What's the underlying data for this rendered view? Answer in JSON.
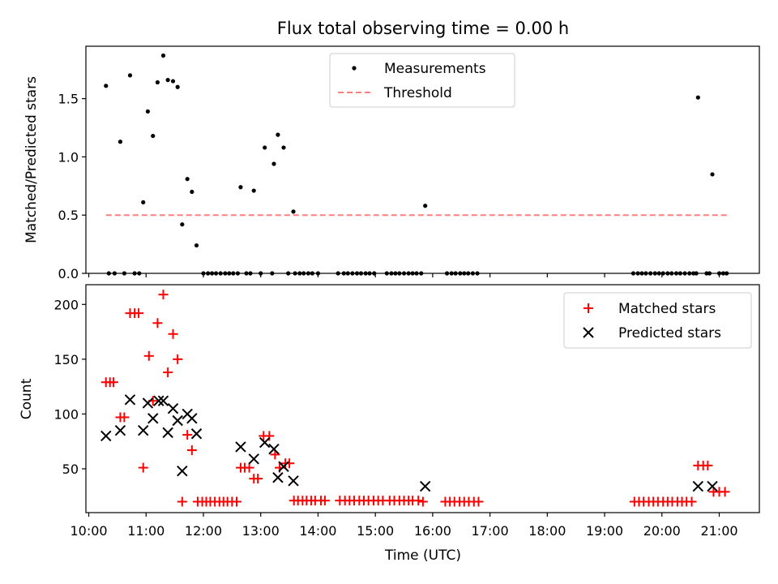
{
  "figure": {
    "title": "Flux total observing time = 0.00 h"
  },
  "chart_data": [
    {
      "type": "scatter",
      "panel": "top",
      "ylabel": "Matched/Predicted stars",
      "ylim": [
        0,
        1.95
      ],
      "yticks": [
        0.0,
        0.5,
        1.0,
        1.5
      ],
      "ytick_labels": [
        "0.0",
        "0.5",
        "1.0",
        "1.5"
      ],
      "xlim": [
        9.95,
        21.7
      ],
      "legend": {
        "placement": "top-center"
      },
      "series": [
        {
          "name": "Measurements",
          "color": "#000000",
          "marker": "dot",
          "x": [
            10.3,
            10.55,
            10.72,
            10.95,
            11.03,
            11.12,
            11.2,
            11.3,
            11.38,
            11.47,
            11.55,
            11.63,
            11.72,
            11.8,
            11.88,
            12.65,
            12.88,
            13.07,
            13.23,
            13.3,
            13.4,
            13.57,
            15.87,
            20.63,
            20.88,
            10.35,
            10.45,
            10.62,
            10.8,
            10.88,
            12.0,
            12.08,
            12.15,
            12.22,
            12.3,
            12.38,
            12.45,
            12.52,
            12.6,
            12.75,
            12.82,
            13.0,
            13.2,
            13.48,
            13.6,
            13.68,
            13.75,
            13.83,
            13.9,
            14.0,
            14.35,
            14.45,
            14.52,
            14.6,
            14.68,
            14.75,
            14.83,
            14.9,
            14.98,
            15.2,
            15.28,
            15.35,
            15.42,
            15.5,
            15.58,
            15.65,
            15.72,
            15.8,
            16.25,
            16.33,
            16.4,
            16.48,
            16.55,
            16.62,
            16.7,
            16.78,
            19.5,
            19.58,
            19.65,
            19.72,
            19.8,
            19.88,
            19.95,
            20.02,
            20.1,
            20.17,
            20.25,
            20.32,
            20.4,
            20.48,
            20.55,
            20.6,
            20.78,
            20.83,
            21.0,
            21.07,
            21.13
          ],
          "y": [
            1.61,
            1.13,
            1.7,
            0.61,
            1.39,
            1.18,
            1.64,
            1.87,
            1.66,
            1.65,
            1.6,
            0.42,
            0.81,
            0.7,
            0.24,
            0.74,
            0.71,
            1.08,
            0.94,
            1.19,
            1.08,
            0.53,
            0.58,
            1.51,
            0.85,
            0,
            0,
            0,
            0,
            0,
            0,
            0,
            0,
            0,
            0,
            0,
            0,
            0,
            0,
            0,
            0,
            0,
            0,
            0,
            0,
            0,
            0,
            0,
            0,
            0,
            0,
            0,
            0,
            0,
            0,
            0,
            0,
            0,
            0,
            0,
            0,
            0,
            0,
            0,
            0,
            0,
            0,
            0,
            0,
            0,
            0,
            0,
            0,
            0,
            0,
            0,
            0,
            0,
            0,
            0,
            0,
            0,
            0,
            0,
            0,
            0,
            0,
            0,
            0,
            0,
            0,
            0,
            0,
            0,
            0,
            0,
            0
          ]
        },
        {
          "name": "Threshold",
          "color": "#ff7f7f",
          "style": "dashed",
          "x": [
            10.3,
            21.15
          ],
          "y": [
            0.5,
            0.5
          ]
        }
      ]
    },
    {
      "type": "scatter",
      "panel": "bottom",
      "xlabel": "Time (UTC)",
      "ylabel": "Count",
      "ylim": [
        10,
        218
      ],
      "yticks": [
        50,
        100,
        150,
        200
      ],
      "ytick_labels": [
        "50",
        "100",
        "150",
        "200"
      ],
      "xlim": [
        9.95,
        21.7
      ],
      "xticks": [
        10,
        11,
        12,
        13,
        14,
        15,
        16,
        17,
        18,
        19,
        20,
        21
      ],
      "xtick_labels": [
        "10:00",
        "11:00",
        "12:00",
        "13:00",
        "14:00",
        "15:00",
        "16:00",
        "17:00",
        "18:00",
        "19:00",
        "20:00",
        "21:00"
      ],
      "legend": {
        "placement": "top-right"
      },
      "series": [
        {
          "name": "Matched stars",
          "color": "#ff0000",
          "marker": "plus",
          "x": [
            10.3,
            10.37,
            10.43,
            10.55,
            10.62,
            10.72,
            10.8,
            10.87,
            10.95,
            11.05,
            11.12,
            11.2,
            11.3,
            11.38,
            11.47,
            11.55,
            11.63,
            11.72,
            11.8,
            11.9,
            11.98,
            12.05,
            12.12,
            12.2,
            12.28,
            12.35,
            12.42,
            12.5,
            12.58,
            12.65,
            12.72,
            12.8,
            12.88,
            12.95,
            13.05,
            13.15,
            13.25,
            13.33,
            13.43,
            13.5,
            13.58,
            13.65,
            13.73,
            13.8,
            13.88,
            13.95,
            14.05,
            14.12,
            14.38,
            14.47,
            14.55,
            14.63,
            14.72,
            14.8,
            14.88,
            14.97,
            15.05,
            15.13,
            15.25,
            15.33,
            15.42,
            15.5,
            15.58,
            15.65,
            15.75,
            15.83,
            16.22,
            16.3,
            16.38,
            16.47,
            16.55,
            16.63,
            16.72,
            16.8,
            19.52,
            19.6,
            19.68,
            19.77,
            19.85,
            19.93,
            20.02,
            20.1,
            20.18,
            20.27,
            20.35,
            20.43,
            20.52,
            20.63,
            20.72,
            20.8,
            20.9,
            21.0,
            21.1
          ],
          "y": [
            129,
            129,
            129,
            97,
            97,
            192,
            192,
            192,
            51,
            153,
            112,
            183,
            209,
            138,
            173,
            150,
            20,
            81,
            67,
            20,
            20,
            20,
            20,
            20,
            20,
            20,
            20,
            20,
            20,
            51,
            51,
            51,
            41,
            41,
            80,
            80,
            63,
            51,
            55,
            55,
            21,
            21,
            21,
            21,
            21,
            21,
            21,
            21,
            21,
            21,
            21,
            21,
            21,
            21,
            21,
            21,
            21,
            21,
            21,
            21,
            21,
            21,
            21,
            21,
            21,
            20,
            20,
            20,
            20,
            20,
            20,
            20,
            20,
            20,
            20,
            20,
            20,
            20,
            20,
            20,
            20,
            20,
            20,
            20,
            20,
            20,
            20,
            53,
            53,
            53,
            29,
            29,
            29
          ]
        },
        {
          "name": "Predicted stars",
          "color": "#000000",
          "marker": "x",
          "x": [
            10.3,
            10.55,
            10.72,
            10.95,
            11.03,
            11.12,
            11.22,
            11.3,
            11.38,
            11.47,
            11.55,
            11.63,
            11.72,
            11.8,
            11.88,
            12.65,
            12.88,
            13.07,
            13.23,
            13.3,
            13.4,
            13.57,
            15.87,
            20.63,
            20.88
          ],
          "y": [
            80,
            85,
            113,
            85,
            110,
            96,
            112,
            112,
            83,
            105,
            94,
            48,
            100,
            96,
            82,
            70,
            59,
            74,
            68,
            42,
            52,
            39,
            34,
            34,
            34
          ]
        }
      ]
    }
  ]
}
